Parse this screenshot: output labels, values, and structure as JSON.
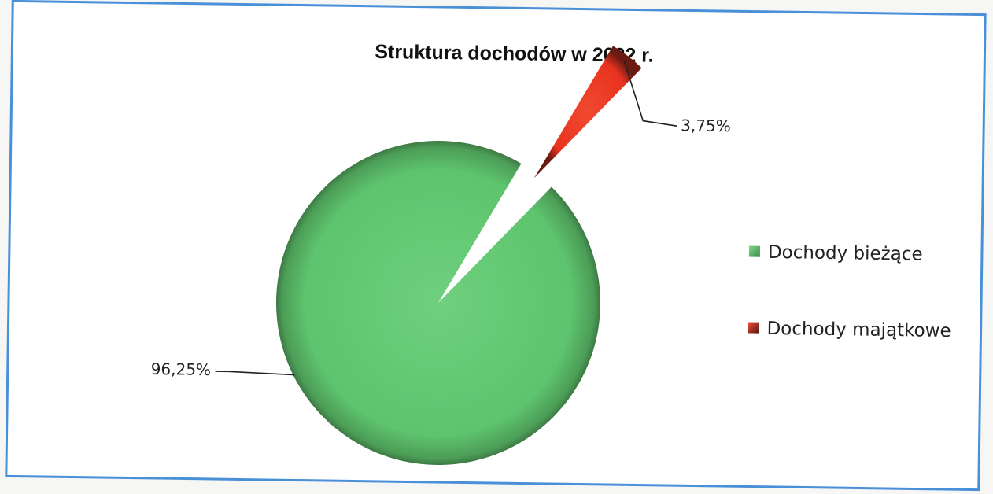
{
  "chart_data": {
    "type": "pie",
    "title": "Struktura dochodów w 2022 r.",
    "categories": [
      "Dochody bieżące",
      "Dochody majątkowe"
    ],
    "values": [
      96.25,
      3.75
    ],
    "data_labels": [
      "96,25%",
      "3,75%"
    ],
    "colors": [
      "#5ec46e",
      "#e8321f"
    ],
    "exploded": [
      false,
      true
    ],
    "legend_position": "right"
  }
}
